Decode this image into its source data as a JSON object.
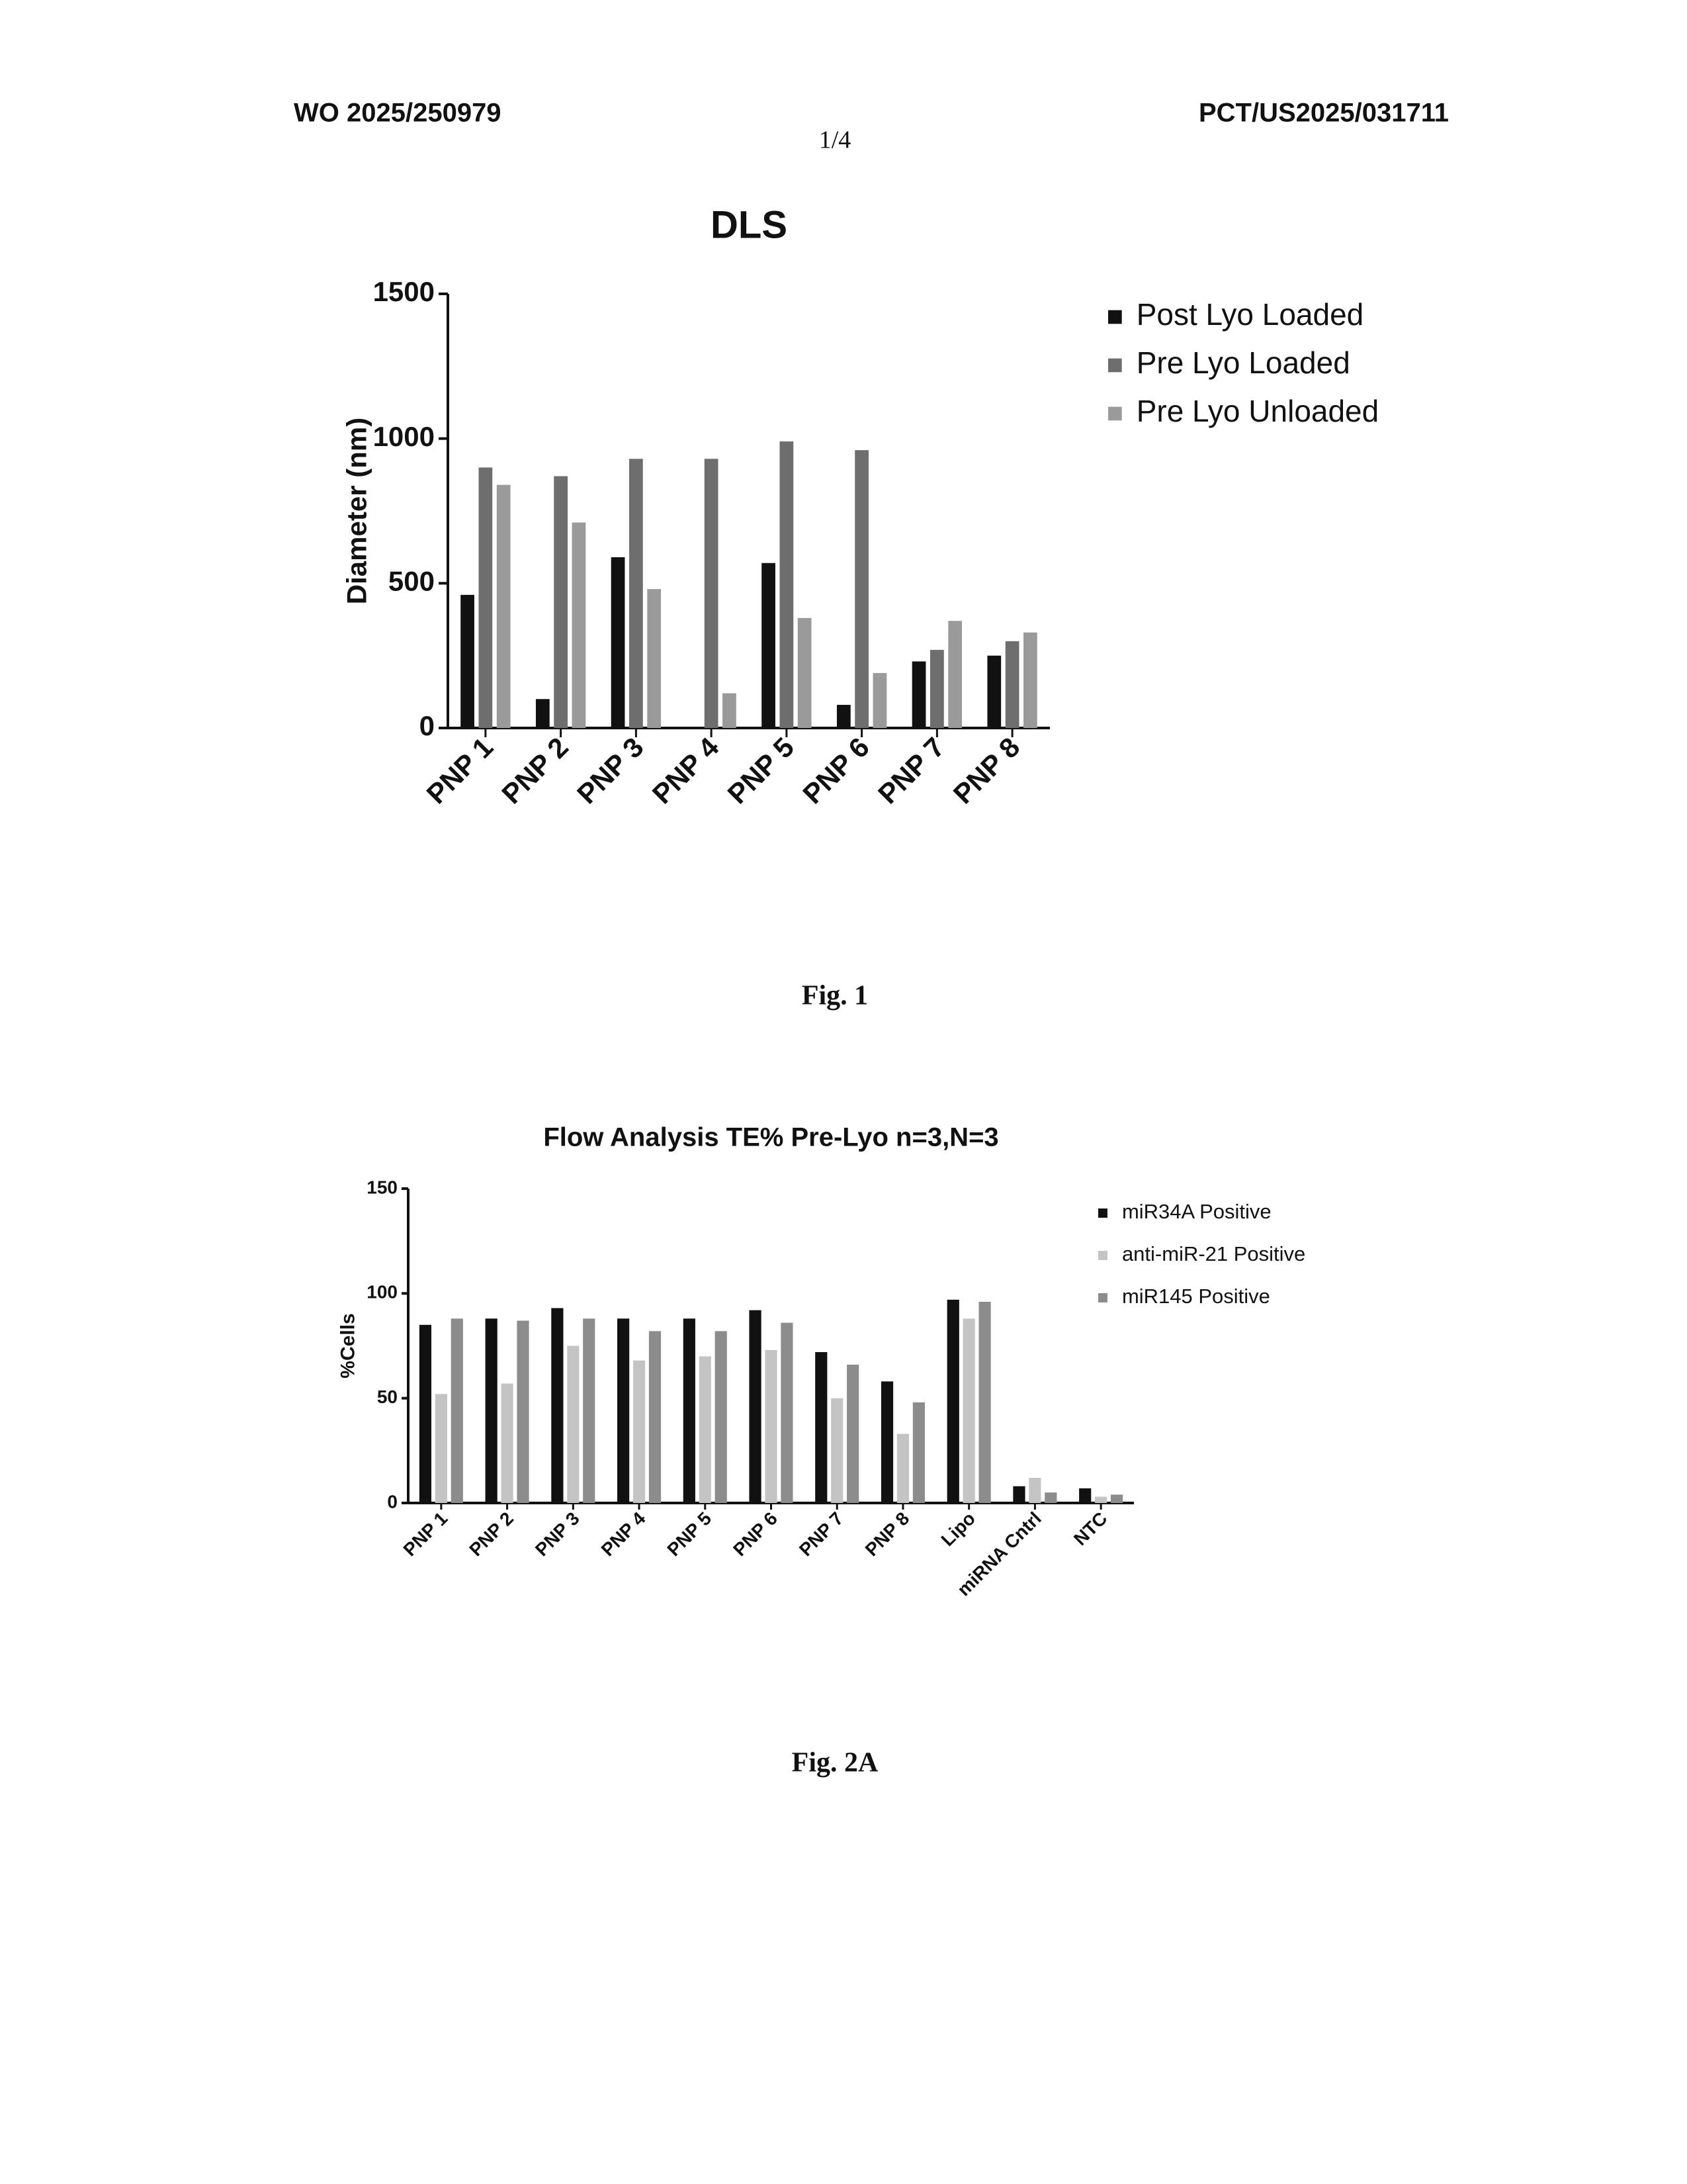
{
  "header": {
    "left": "WO 2025/250979",
    "right": "PCT/US2025/031711",
    "page": "1/4"
  },
  "captions": [
    "Fig. 1",
    "Fig. 2A"
  ],
  "chart_data": [
    {
      "type": "bar",
      "title": "DLS",
      "y_label": "Diameter (nm)",
      "categories": [
        "PNP 1",
        "PNP 2",
        "PNP 3",
        "PNP 4",
        "PNP 5",
        "PNP 6",
        "PNP 7",
        "PNP 8"
      ],
      "series": [
        {
          "name": "Post Lyo Loaded",
          "color": "#111111",
          "values": [
            460,
            100,
            590,
            null,
            570,
            80,
            230,
            250
          ]
        },
        {
          "name": "Pre Lyo Loaded",
          "color": "#6e6e6e",
          "values": [
            900,
            870,
            930,
            930,
            990,
            960,
            270,
            300
          ]
        },
        {
          "name": "Pre Lyo Unloaded",
          "color": "#9a9a9a",
          "values": [
            840,
            710,
            480,
            120,
            380,
            190,
            370,
            330
          ]
        }
      ],
      "ylim": [
        0,
        1500
      ],
      "yticks": [
        0,
        500,
        1000,
        1500
      ],
      "legend": "right"
    },
    {
      "type": "bar",
      "title": "Flow Analysis TE% Pre-Lyo n=3,N=3",
      "y_label": "%Cells",
      "categories": [
        "PNP 1",
        "PNP 2",
        "PNP 3",
        "PNP 4",
        "PNP 5",
        "PNP 6",
        "PNP 7",
        "PNP 8",
        "Lipo",
        "miRNA Cntrl",
        "NTC"
      ],
      "series": [
        {
          "name": "miR34A Positive",
          "color": "#111111",
          "values": [
            85,
            88,
            93,
            88,
            88,
            92,
            72,
            58,
            97,
            8,
            7
          ]
        },
        {
          "name": "anti-miR-21 Positive",
          "color": "#c4c4c4",
          "values": [
            52,
            57,
            75,
            68,
            70,
            73,
            50,
            33,
            88,
            12,
            3
          ]
        },
        {
          "name": "miR145 Positive",
          "color": "#8c8c8c",
          "values": [
            88,
            87,
            88,
            82,
            82,
            86,
            66,
            48,
            96,
            5,
            4
          ]
        }
      ],
      "ylim": [
        0,
        150
      ],
      "yticks": [
        0,
        50,
        100,
        150
      ],
      "legend": "right"
    }
  ]
}
